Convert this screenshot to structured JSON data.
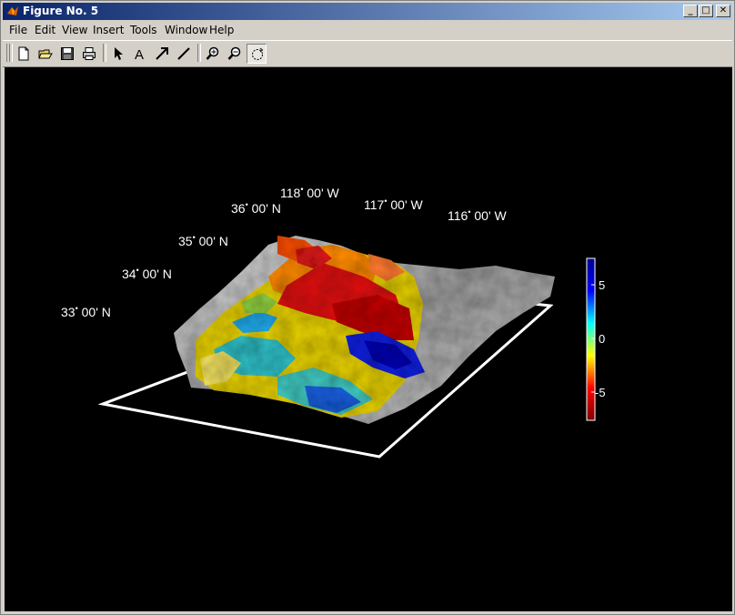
{
  "window": {
    "title": "Figure No. 5"
  },
  "menu": [
    "File",
    "Edit",
    "View",
    "Insert",
    "Tools",
    "Window",
    "Help"
  ],
  "toolbar": {
    "buttons": [
      "new-figure",
      "open-file",
      "save",
      "print",
      "edit-plot",
      "insert-text",
      "insert-arrow",
      "insert-line",
      "zoom-in",
      "zoom-out",
      "rotate-3d"
    ]
  },
  "plot": {
    "lat_labels": [
      {
        "deg": "33",
        "text": " 00' N"
      },
      {
        "deg": "34",
        "text": " 00' N"
      },
      {
        "deg": "35",
        "text": " 00' N"
      },
      {
        "deg": "36",
        "text": " 00' N"
      }
    ],
    "lon_labels": [
      {
        "deg": "118",
        "text": " 00' W"
      },
      {
        "deg": "117",
        "text": " 00' W"
      },
      {
        "deg": "116",
        "text": " 00' W"
      }
    ],
    "colorbar": {
      "ticks": [
        "5",
        "0",
        "-5"
      ],
      "colormap": [
        "#00008f",
        "#0000ff",
        "#00ffff",
        "#ffff00",
        "#ff0000",
        "#800000"
      ]
    }
  }
}
